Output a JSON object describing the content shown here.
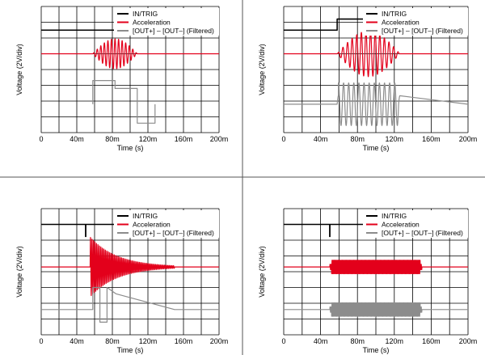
{
  "chart_data": [
    {
      "type": "line",
      "title": "",
      "xlabel": "Time (s)",
      "ylabel": "Voltage (2V/div)",
      "xtick_labels": [
        "0",
        "40m",
        "80m",
        "120m",
        "160m",
        "200m"
      ],
      "xlim": [
        0,
        0.2
      ],
      "grid": true,
      "legend_position": "top-right",
      "series": [
        {
          "name": "IN/TRIG",
          "color": "#000000",
          "x": [
            0,
            0.2
          ],
          "y": [
            6.5,
            6.5
          ]
        },
        {
          "name": "Acceleration",
          "color": "#e3001b",
          "burst": {
            "start": 0.058,
            "end": 0.108,
            "peak_amp": 0.95,
            "freq": 250,
            "baseline": 5.0
          }
        },
        {
          "name": "[OUT+] – [OUT–] (Filtered)",
          "color": "#8c8c8c",
          "x": [
            0.058,
            0.058,
            0.083,
            0.083,
            0.108,
            0.108,
            0.128,
            0.128
          ],
          "y": [
            1.8,
            3.3,
            3.3,
            2.8,
            2.8,
            0.6,
            0.6,
            1.8
          ]
        }
      ]
    },
    {
      "type": "line",
      "title": "",
      "xlabel": "Time (s)",
      "ylabel": "Voltage (2V/div)",
      "xtick_labels": [
        "0",
        "40m",
        "80m",
        "120m",
        "160m",
        "200m"
      ],
      "xlim": [
        0,
        0.2
      ],
      "grid": true,
      "legend_position": "top-right",
      "series": [
        {
          "name": "IN/TRIG",
          "color": "#000000",
          "x": [
            0,
            0.058,
            0.058,
            0.136,
            0.136,
            0.2
          ],
          "y": [
            6.5,
            6.5,
            7.2,
            7.2,
            6.5,
            6.5
          ]
        },
        {
          "name": "Acceleration",
          "color": "#e3001b",
          "burst": {
            "start": 0.058,
            "end": 0.126,
            "peak_amp": 1.45,
            "freq": 200,
            "baseline": 5.0
          }
        },
        {
          "name": "[OUT+] – [OUT–] (Filtered)",
          "color": "#8c8c8c",
          "burst": {
            "start": 0.058,
            "end": 0.126,
            "peak_amp": 1.35,
            "freq": 180,
            "baseline": 1.8,
            "envelope": "flat"
          }
        }
      ]
    },
    {
      "type": "line",
      "title": "",
      "xlabel": "Time (s)",
      "ylabel": "Voltage (2V/div)",
      "xtick_labels": [
        "0",
        "40m",
        "80m",
        "120m",
        "160m",
        "200m"
      ],
      "xlim": [
        0,
        0.2
      ],
      "grid": true,
      "legend_position": "top-right",
      "series": [
        {
          "name": "IN/TRIG",
          "color": "#000000",
          "x": [
            0,
            0.2
          ],
          "y": [
            7.0,
            7.0
          ],
          "marker": {
            "x": 0.05,
            "y0": 6.2,
            "y1": 7.0
          }
        },
        {
          "name": "Acceleration",
          "color": "#e3001b",
          "decay": {
            "start": 0.055,
            "end": 0.15,
            "peak_amp": 1.9,
            "tau": 0.03,
            "freq": 600,
            "baseline": 4.3
          }
        },
        {
          "name": "[OUT+] – [OUT–] (Filtered)",
          "color": "#8c8c8c",
          "x": [
            0,
            0.058,
            0.058,
            0.066,
            0.066,
            0.074,
            0.074,
            0.084,
            0.15,
            0.2
          ],
          "y": [
            1.6,
            1.6,
            3.0,
            3.0,
            0.8,
            0.8,
            3.0,
            2.6,
            1.6,
            1.6
          ]
        }
      ]
    },
    {
      "type": "line",
      "title": "",
      "xlabel": "Time (s)",
      "ylabel": "Voltage (2V/div)",
      "xtick_labels": [
        "0",
        "40m",
        "80m",
        "120m",
        "160m",
        "200m"
      ],
      "xlim": [
        0,
        0.2
      ],
      "grid": true,
      "legend_position": "top-right",
      "series": [
        {
          "name": "IN/TRIG",
          "color": "#000000",
          "x": [
            0,
            0.2
          ],
          "y": [
            7.0,
            7.0
          ],
          "marker": {
            "x": 0.05,
            "y0": 6.2,
            "y1": 7.0
          }
        },
        {
          "name": "Acceleration",
          "color": "#e3001b",
          "burst": {
            "start": 0.05,
            "end": 0.15,
            "peak_amp": 0.45,
            "freq": 900,
            "baseline": 4.3,
            "envelope": "flat"
          }
        },
        {
          "name": "[OUT+] – [OUT–] (Filtered)",
          "color": "#8c8c8c",
          "burst": {
            "start": 0.05,
            "end": 0.15,
            "peak_amp": 0.45,
            "freq": 900,
            "baseline": 1.6,
            "envelope": "flat"
          }
        }
      ]
    }
  ]
}
